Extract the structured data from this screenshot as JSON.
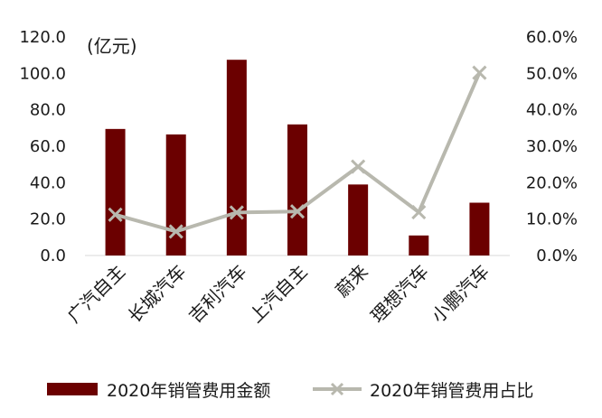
{
  "chart_data": {
    "type": "bar+line",
    "unit_label": "(亿元)",
    "categories": [
      "广汽自主",
      "长城汽车",
      "吉利汽车",
      "上汽自主",
      "蔚来",
      "理想汽车",
      "小鹏汽车"
    ],
    "series": [
      {
        "name": "2020年销管费用金额",
        "type": "bar",
        "axis": "left",
        "color": "#6b0000",
        "values": [
          69.5,
          66.5,
          107.5,
          72.0,
          39.0,
          11.0,
          29.0
        ]
      },
      {
        "name": "2020年销管费用占比",
        "type": "line",
        "axis": "right",
        "color": "#b8b8ae",
        "marker": "x",
        "values": [
          0.112,
          0.066,
          0.118,
          0.121,
          0.244,
          0.119,
          0.502
        ]
      }
    ],
    "left_axis": {
      "min": 0,
      "max": 120,
      "step": 20,
      "tick_labels": [
        "0.0",
        "20.0",
        "40.0",
        "60.0",
        "80.0",
        "100.0",
        "120.0"
      ]
    },
    "right_axis": {
      "min": 0,
      "max": 0.6,
      "step": 0.1,
      "tick_labels": [
        "0.0%",
        "10.0%",
        "20.0%",
        "30.0%",
        "40.0%",
        "50.0%",
        "60.0%"
      ]
    },
    "legend_position": "bottom"
  }
}
